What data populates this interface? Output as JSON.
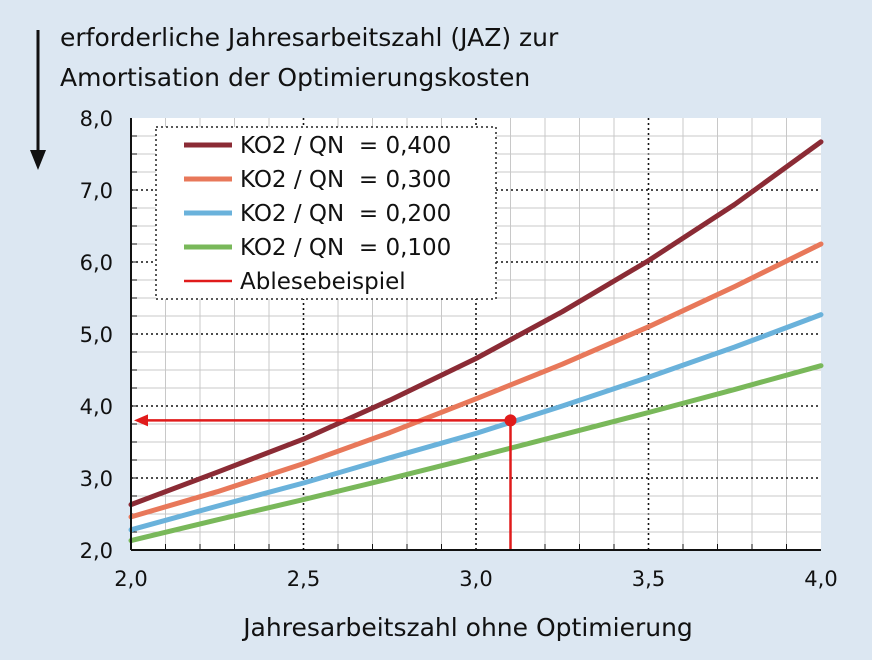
{
  "chart_data": {
    "type": "line",
    "title_lines": [
      "erforderliche Jahresarbeitszahl (JAZ) zur",
      "Amortisation der Optimierungskosten"
    ],
    "xlabel": "Jahresarbeitszahl ohne Optimierung",
    "ylabel": "",
    "xlim": [
      2.0,
      4.0
    ],
    "ylim": [
      2.0,
      8.0
    ],
    "xticks": [
      "2,0",
      "2,5",
      "3,0",
      "3,5",
      "4,0"
    ],
    "yticks": [
      "2,0",
      "3,0",
      "4,0",
      "5,0",
      "6,0",
      "7,0",
      "8,0"
    ],
    "grid": true,
    "legend_position": "top-left",
    "series": [
      {
        "name": "KO2 / QN  = 0,400",
        "color": "#8b2b35",
        "x": [
          2.0,
          2.25,
          2.5,
          2.75,
          3.0,
          3.25,
          3.5,
          3.75,
          4.0
        ],
        "y": [
          2.63,
          3.08,
          3.54,
          4.08,
          4.66,
          5.31,
          6.02,
          6.8,
          7.67
        ]
      },
      {
        "name": "KO2 / QN  = 0,300",
        "color": "#e8785a",
        "x": [
          2.0,
          2.25,
          2.5,
          2.75,
          3.0,
          3.25,
          3.5,
          3.75,
          4.0
        ],
        "y": [
          2.46,
          2.81,
          3.2,
          3.63,
          4.1,
          4.58,
          5.1,
          5.66,
          6.25
        ]
      },
      {
        "name": "KO2 / QN  = 0,200",
        "color": "#6ab2db",
        "x": [
          2.0,
          2.25,
          2.5,
          2.75,
          3.0,
          3.25,
          3.5,
          3.75,
          4.0
        ],
        "y": [
          2.28,
          2.61,
          2.93,
          3.28,
          3.62,
          4.0,
          4.4,
          4.82,
          5.27
        ]
      },
      {
        "name": "KO2 / QN  = 0,100",
        "color": "#79b85a",
        "x": [
          2.0,
          2.25,
          2.5,
          2.75,
          3.0,
          3.25,
          3.5,
          3.75,
          4.0
        ],
        "y": [
          2.13,
          2.42,
          2.7,
          2.99,
          3.29,
          3.6,
          3.91,
          4.23,
          4.56
        ]
      }
    ],
    "example": {
      "name": "Ablesebeispiel",
      "color": "#e01b1b",
      "x": 3.1,
      "y": 3.8
    }
  }
}
